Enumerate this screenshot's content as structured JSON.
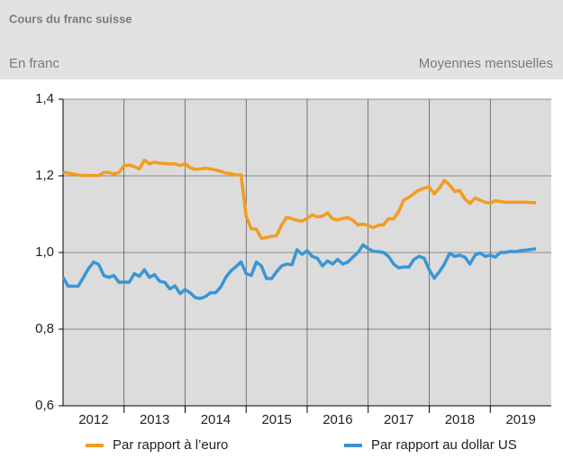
{
  "chart_data": {
    "type": "line",
    "title": "Cours du franc suisse",
    "subtitle": "En franc",
    "note": "Moyennes mensuelles",
    "x": [
      2012,
      2012.083,
      2012.167,
      2012.25,
      2012.333,
      2012.417,
      2012.5,
      2012.583,
      2012.667,
      2012.75,
      2012.833,
      2012.917,
      2013,
      2013.083,
      2013.167,
      2013.25,
      2013.333,
      2013.417,
      2013.5,
      2013.583,
      2013.667,
      2013.75,
      2013.833,
      2013.917,
      2014,
      2014.083,
      2014.167,
      2014.25,
      2014.333,
      2014.417,
      2014.5,
      2014.583,
      2014.667,
      2014.75,
      2014.833,
      2014.917,
      2015,
      2015.083,
      2015.167,
      2015.25,
      2015.333,
      2015.417,
      2015.5,
      2015.583,
      2015.667,
      2015.75,
      2015.833,
      2015.917,
      2016,
      2016.083,
      2016.167,
      2016.25,
      2016.333,
      2016.417,
      2016.5,
      2016.583,
      2016.667,
      2016.75,
      2016.833,
      2016.917,
      2017,
      2017.083,
      2017.167,
      2017.25,
      2017.333,
      2017.417,
      2017.5,
      2017.583,
      2017.667,
      2017.75,
      2017.833,
      2017.917,
      2018,
      2018.083,
      2018.167,
      2018.25,
      2018.333,
      2018.417,
      2018.5,
      2018.583,
      2018.667,
      2018.75,
      2018.833,
      2018.917,
      2019,
      2019.083,
      2019.167,
      2019.25,
      2019.333,
      2019.417,
      2019.5,
      2019.583,
      2019.667,
      2019.75
    ],
    "series": [
      {
        "name": "Par rapport à l’euro",
        "color": "#f39c1f",
        "values": [
          1.21,
          1.207,
          1.205,
          1.202,
          1.201,
          1.201,
          1.201,
          1.201,
          1.209,
          1.209,
          1.205,
          1.209,
          1.227,
          1.228,
          1.224,
          1.218,
          1.241,
          1.231,
          1.236,
          1.233,
          1.232,
          1.231,
          1.231,
          1.227,
          1.232,
          1.221,
          1.217,
          1.218,
          1.22,
          1.218,
          1.215,
          1.212,
          1.207,
          1.206,
          1.202,
          1.203,
          1.094,
          1.062,
          1.061,
          1.037,
          1.039,
          1.042,
          1.044,
          1.072,
          1.092,
          1.088,
          1.084,
          1.082,
          1.089,
          1.098,
          1.093,
          1.095,
          1.103,
          1.088,
          1.085,
          1.089,
          1.091,
          1.084,
          1.072,
          1.074,
          1.07,
          1.065,
          1.071,
          1.072,
          1.088,
          1.088,
          1.107,
          1.137,
          1.144,
          1.154,
          1.163,
          1.168,
          1.171,
          1.153,
          1.168,
          1.188,
          1.176,
          1.159,
          1.162,
          1.14,
          1.128,
          1.142,
          1.137,
          1.131,
          1.129,
          1.135,
          1.133,
          1.131,
          1.131,
          1.131,
          1.131,
          1.131,
          1.13,
          1.13
        ]
      },
      {
        "name": "Par rapport au dollar US",
        "color": "#3a96d4",
        "values": [
          0.935,
          0.912,
          0.912,
          0.912,
          0.935,
          0.958,
          0.975,
          0.969,
          0.94,
          0.935,
          0.94,
          0.922,
          0.923,
          0.922,
          0.945,
          0.938,
          0.955,
          0.935,
          0.942,
          0.925,
          0.922,
          0.905,
          0.913,
          0.893,
          0.903,
          0.895,
          0.882,
          0.88,
          0.885,
          0.895,
          0.895,
          0.91,
          0.935,
          0.952,
          0.963,
          0.975,
          0.945,
          0.94,
          0.975,
          0.965,
          0.932,
          0.932,
          0.95,
          0.965,
          0.97,
          0.968,
          1.007,
          0.995,
          1.005,
          0.99,
          0.985,
          0.965,
          0.978,
          0.97,
          0.982,
          0.97,
          0.975,
          0.988,
          1.0,
          1.02,
          1.01,
          1.003,
          1.002,
          1.0,
          0.99,
          0.97,
          0.96,
          0.962,
          0.962,
          0.982,
          0.99,
          0.985,
          0.955,
          0.933,
          0.95,
          0.97,
          0.998,
          0.99,
          0.993,
          0.988,
          0.97,
          0.993,
          0.999,
          0.99,
          0.993,
          0.988,
          1.0,
          1.0,
          1.003,
          1.002,
          1.005,
          1.006,
          1.008,
          1.01
        ]
      }
    ],
    "xlim": [
      2012,
      2020
    ],
    "xticks": [
      2013,
      2014,
      2015,
      2016,
      2017,
      2018,
      2019
    ],
    "x_labels": [
      "2012",
      "2013",
      "2014",
      "2015",
      "2016",
      "2017",
      "2018",
      "2019"
    ],
    "ylim": [
      0.6,
      1.4
    ],
    "yticks": [
      {
        "value": 0.6,
        "label": "0,6"
      },
      {
        "value": 0.8,
        "label": "0,8"
      },
      {
        "value": 1.0,
        "label": "1,0"
      },
      {
        "value": 1.2,
        "label": "1,2"
      },
      {
        "value": 1.4,
        "label": "1,4"
      }
    ],
    "grid": true,
    "legend": "bottom"
  }
}
